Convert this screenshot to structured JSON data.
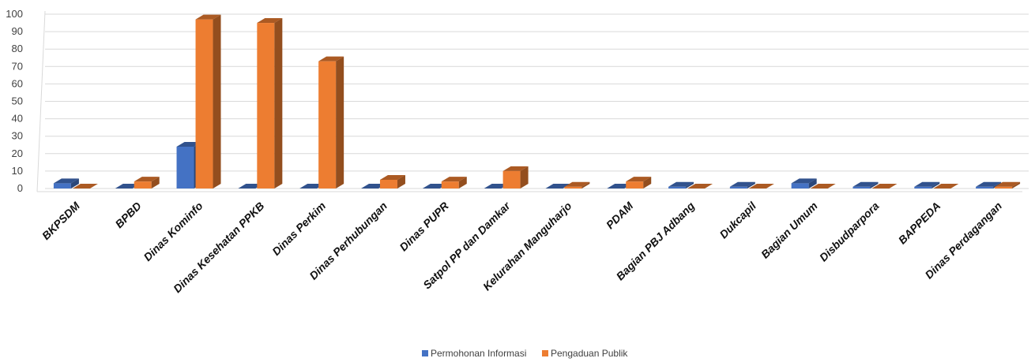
{
  "chart_data": {
    "type": "bar",
    "style": "3d-clustered-column",
    "categories": [
      "BKPSDM",
      "BPBD",
      "Dinas Kominfo",
      "Dinas Kesehatan PPKB",
      "Dinas Perkim",
      "Dinas Perhubungan",
      "Dinas PUPR",
      "Satpol PP dan Damkar",
      "Kelurahan Manguharjo",
      "PDAM",
      "Bagian PBJ Adbang",
      "Dukcapil",
      "Bagian Umum",
      "Disbudparpora",
      "BAPPEDA",
      "Dinas Perdagangan"
    ],
    "series": [
      {
        "name": "Permohonan Informasi",
        "color": "#4472C4",
        "values": [
          3,
          0,
          24,
          0,
          0,
          0,
          0,
          0,
          0,
          0,
          1,
          1,
          3,
          1,
          1,
          1
        ]
      },
      {
        "name": "Pengaduan Publik",
        "color": "#ED7D31",
        "values": [
          0,
          4,
          97,
          95,
          73,
          5,
          4,
          10,
          1,
          4,
          0,
          0,
          0,
          0,
          0,
          1
        ]
      }
    ],
    "ylim": [
      0,
      100
    ],
    "yticks": [
      0,
      10,
      20,
      30,
      40,
      50,
      60,
      70,
      80,
      90,
      100
    ],
    "grid": true,
    "legend_position": "bottom"
  }
}
